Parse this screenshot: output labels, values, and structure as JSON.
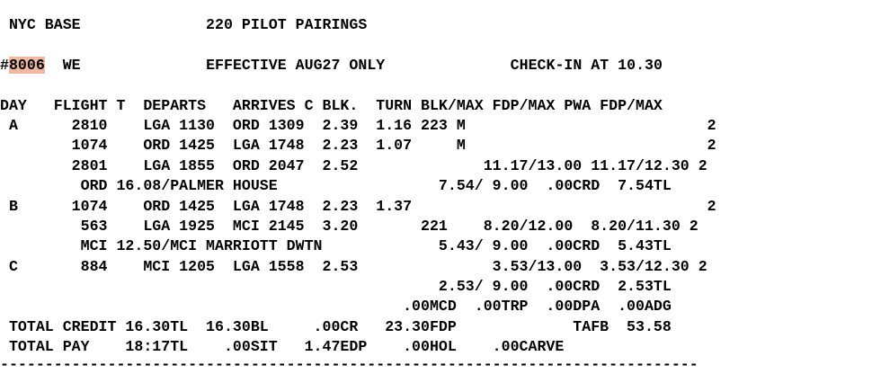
{
  "header": {
    "base": " NYC BASE",
    "gap1": "              ",
    "title": "220 PILOT PAIRINGS"
  },
  "pairing": {
    "hash": "#",
    "number": "8006",
    "days": "  WE",
    "gap1": "              ",
    "effective": "EFFECTIVE AUG27 ONLY",
    "gap2": "              ",
    "checkin": "CHECK-IN AT 10.30"
  },
  "columns_header": "DAY   FLIGHT T  DEPARTS   ARRIVES C BLK.  TURN BLK/MAX FDP/MAX PWA FDP/MAX",
  "rows": [
    " A      2810    LGA 1130  ORD 1309  2.39  1.16 223 M                           2",
    "        1074    ORD 1425  LGA 1748  2.23  1.07     M                           2",
    "        2801    LGA 1855  ORD 2047  2.52              11.17/13.00 11.17/12.30 2",
    "         ORD 16.08/PALMER HOUSE                  7.54/ 9.00  .00CRD  7.54TL",
    " B      1074    ORD 1425  LGA 1748  2.23  1.37                                 2",
    "         563    LGA 1925  MCI 2145  3.20       221    8.20/12.00  8.20/11.30 2",
    "         MCI 12.50/MCI MARRIOTT DWTN             5.43/ 9.00  .00CRD  5.43TL",
    " C       884    MCI 1205  LGA 1558  2.53               3.53/13.00  3.53/12.30 2",
    "                                                 2.53/ 9.00  .00CRD  2.53TL",
    "                                             .00MCD  .00TRP  .00DPA  .00ADG",
    " TOTAL CREDIT 16.30TL  16.30BL     .00CR   23.30FDP             TAFB  53.58",
    " TOTAL PAY    18:17TL    .00SIT   1.47EDP    .00HOL    .00CARVE"
  ],
  "separator": "------------------------------------------------------------------------------",
  "colors": {
    "highlight": "#f0b9a3",
    "text": "#000000",
    "background": "#ffffff"
  }
}
